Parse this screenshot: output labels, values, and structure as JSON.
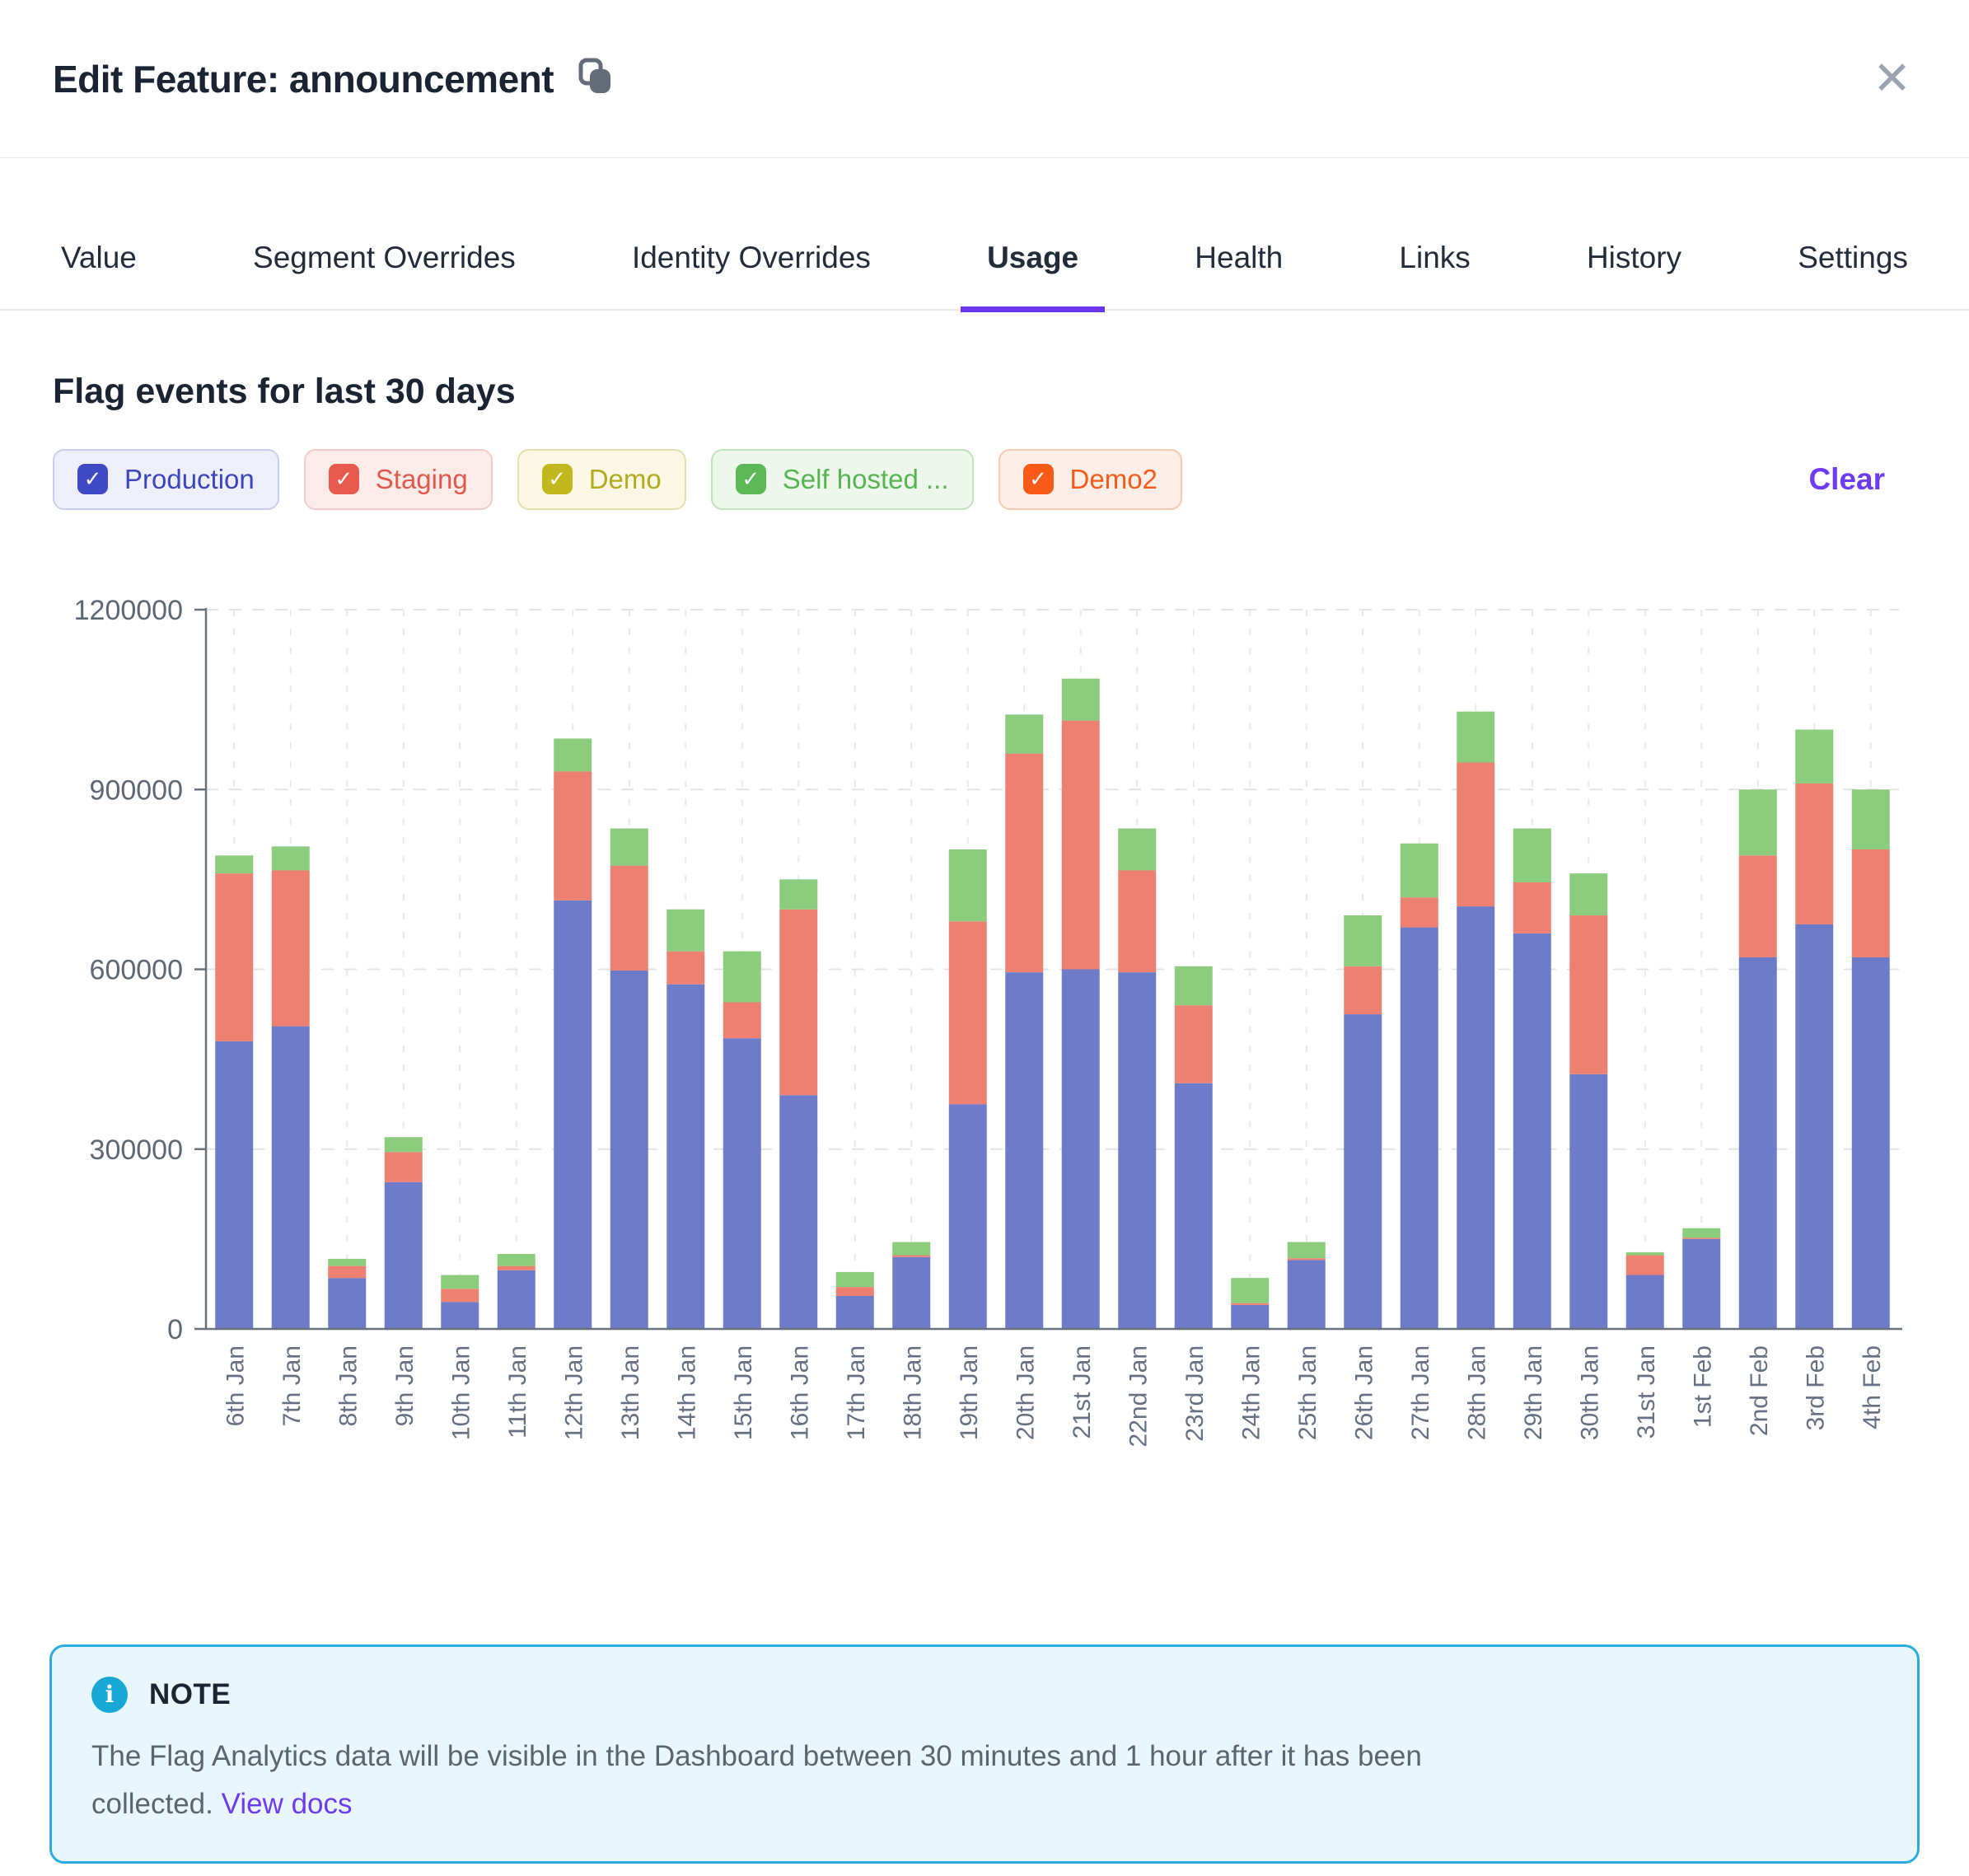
{
  "header": {
    "title": "Edit Feature: announcement",
    "close_glyph": "✕"
  },
  "tabs": [
    {
      "label": "Value",
      "slug": "value",
      "active": false
    },
    {
      "label": "Segment Overrides",
      "slug": "segment-overrides",
      "active": false
    },
    {
      "label": "Identity Overrides",
      "slug": "identity-overrides",
      "active": false
    },
    {
      "label": "Usage",
      "slug": "usage",
      "active": true
    },
    {
      "label": "Health",
      "slug": "health",
      "active": false
    },
    {
      "label": "Links",
      "slug": "links",
      "active": false
    },
    {
      "label": "History",
      "slug": "history",
      "active": false
    },
    {
      "label": "Settings",
      "slug": "settings",
      "active": false
    }
  ],
  "usage": {
    "heading": "Flag events for last 30 days",
    "check_glyph": "✓",
    "clear_label": "Clear",
    "filters": [
      {
        "label": "Production",
        "slug": "production",
        "checked": true,
        "box": "#3E49C4",
        "text": "#3C47BF",
        "bg": "#EEEFFA",
        "border": "#C9CDEF"
      },
      {
        "label": "Staging",
        "slug": "staging",
        "checked": true,
        "box": "#E8594E",
        "text": "#E3584D",
        "bg": "#FBECEA",
        "border": "#F3CBC7"
      },
      {
        "label": "Demo",
        "slug": "demo",
        "checked": true,
        "box": "#C2B71F",
        "text": "#B4AA1D",
        "bg": "#FAF7E4",
        "border": "#E7E0AC"
      },
      {
        "label": "Self hosted ...",
        "slug": "self-hosted",
        "checked": true,
        "box": "#5CB956",
        "text": "#57B551",
        "bg": "#EDF7EC",
        "border": "#BFE3BC"
      },
      {
        "label": "Demo2",
        "slug": "demo2",
        "checked": true,
        "box": "#F95A17",
        "text": "#F75B1C",
        "bg": "#FDEFE7",
        "border": "#F9C9AE"
      }
    ]
  },
  "chart_data": {
    "type": "bar",
    "stacked": true,
    "title": "Flag events for last 30 days",
    "xlabel": "",
    "ylabel": "",
    "ylim": [
      0,
      1200000
    ],
    "yticks": [
      0,
      300000,
      600000,
      900000,
      1200000
    ],
    "grid": true,
    "legend_position": "none",
    "categories": [
      "6th Jan",
      "7th Jan",
      "8th Jan",
      "9th Jan",
      "10th Jan",
      "11th Jan",
      "12th Jan",
      "13th Jan",
      "14th Jan",
      "15th Jan",
      "16th Jan",
      "17th Jan",
      "18th Jan",
      "19th Jan",
      "20th Jan",
      "21st Jan",
      "22nd Jan",
      "23rd Jan",
      "24th Jan",
      "25th Jan",
      "26th Jan",
      "27th Jan",
      "28th Jan",
      "29th Jan",
      "30th Jan",
      "31st Jan",
      "1st Feb",
      "2nd Feb",
      "3rd Feb",
      "4th Feb"
    ],
    "series": [
      {
        "name": "Production",
        "color": "#6E7BC8",
        "values": [
          480000,
          505000,
          85000,
          245000,
          45000,
          98000,
          715000,
          598000,
          575000,
          485000,
          390000,
          55000,
          120000,
          375000,
          595000,
          600000,
          595000,
          410000,
          40000,
          115000,
          525000,
          670000,
          705000,
          660000,
          425000,
          90000,
          150000,
          620000,
          675000,
          620000
        ]
      },
      {
        "name": "Staging",
        "color": "#EE8071",
        "values": [
          280000,
          260000,
          20000,
          50000,
          22000,
          7000,
          215000,
          175000,
          55000,
          60000,
          310000,
          15000,
          3000,
          305000,
          365000,
          415000,
          170000,
          130000,
          3000,
          3000,
          80000,
          50000,
          240000,
          85000,
          265000,
          33000,
          2000,
          170000,
          235000,
          180000
        ]
      },
      {
        "name": "Self hosted",
        "color": "#8BCC7D",
        "values": [
          30000,
          40000,
          12000,
          25000,
          23000,
          20000,
          55000,
          62000,
          70000,
          85000,
          50000,
          25000,
          22000,
          120000,
          65000,
          70000,
          70000,
          65000,
          42000,
          27000,
          85000,
          90000,
          85000,
          90000,
          70000,
          5000,
          16000,
          110000,
          90000,
          100000
        ]
      }
    ]
  },
  "note": {
    "icon_glyph": "i",
    "title": "NOTE",
    "body": "The Flag Analytics data will be visible in the Dashboard between 30 minutes and 1 hour after it has been collected.",
    "link_label": "View docs"
  }
}
